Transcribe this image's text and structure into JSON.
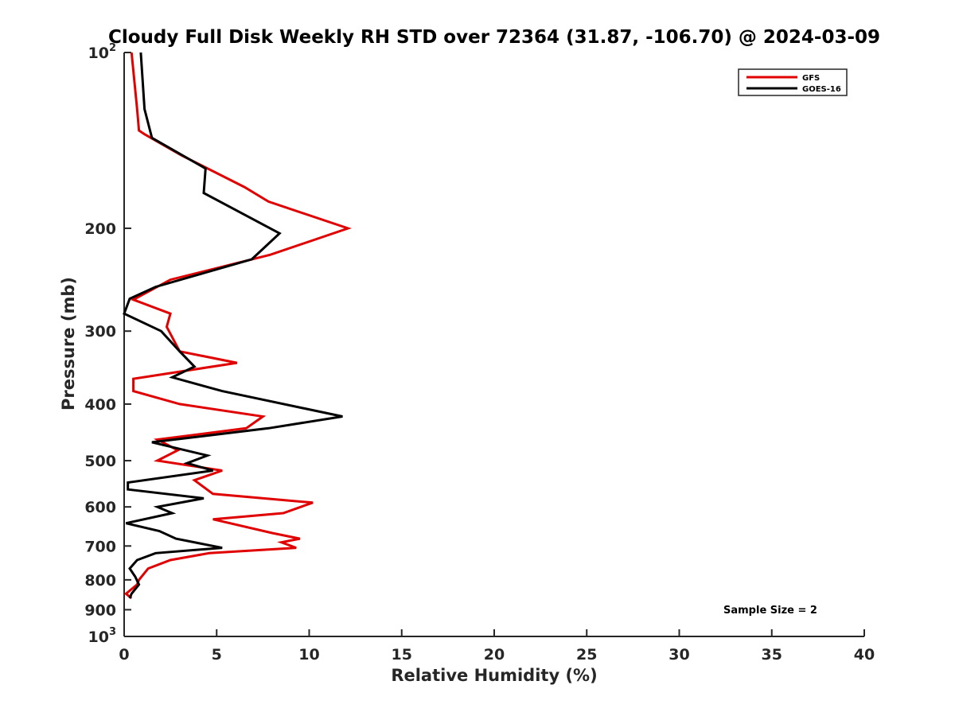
{
  "chart_data": {
    "type": "line",
    "title": "Cloudy Full Disk Weekly RH STD over 72364 (31.87, -106.70) @ 2024-03-09",
    "xlabel": "Relative Humidity (%)",
    "ylabel": "Pressure (mb)",
    "xlim": [
      0,
      40
    ],
    "ylim": [
      100,
      1000
    ],
    "y_scale": "log",
    "y_reversed": true,
    "x_ticks": [
      0,
      5,
      10,
      15,
      20,
      25,
      30,
      35,
      40
    ],
    "x_tick_labels": [
      "0",
      "5",
      "10",
      "15",
      "20",
      "25",
      "30",
      "35",
      "40"
    ],
    "y_ticks": [
      100,
      200,
      300,
      400,
      500,
      600,
      700,
      800,
      900,
      1000
    ],
    "y_tick_labels": [
      {
        "base": "10",
        "sup": "2"
      },
      {
        "base": "200",
        "sup": ""
      },
      {
        "base": "300",
        "sup": ""
      },
      {
        "base": "400",
        "sup": ""
      },
      {
        "base": "500",
        "sup": ""
      },
      {
        "base": "600",
        "sup": ""
      },
      {
        "base": "700",
        "sup": ""
      },
      {
        "base": "800",
        "sup": ""
      },
      {
        "base": "900",
        "sup": ""
      },
      {
        "base": "10",
        "sup": "3"
      }
    ],
    "grid": false,
    "legend_position": "top-right",
    "annotation": "Sample Size = 2",
    "series": [
      {
        "name": "GFS",
        "color": "#e00000",
        "points": [
          [
            0.4,
            100
          ],
          [
            0.7,
            125
          ],
          [
            0.7,
            125
          ],
          [
            0.8,
            136
          ],
          [
            1.1,
            138
          ],
          [
            3.1,
            150
          ],
          [
            6.5,
            170
          ],
          [
            7.8,
            180
          ],
          [
            12.1,
            200
          ],
          [
            7.9,
            222
          ],
          [
            2.5,
            245
          ],
          [
            0.5,
            265
          ],
          [
            2.5,
            280
          ],
          [
            2.3,
            295
          ],
          [
            3.0,
            325
          ],
          [
            6.1,
            340
          ],
          [
            0.5,
            362
          ],
          [
            0.5,
            380
          ],
          [
            3.0,
            400
          ],
          [
            7.5,
            420
          ],
          [
            6.6,
            440
          ],
          [
            1.8,
            460
          ],
          [
            2.9,
            480
          ],
          [
            1.8,
            500
          ],
          [
            5.3,
            520
          ],
          [
            3.8,
            540
          ],
          [
            4.8,
            570
          ],
          [
            10.2,
            590
          ],
          [
            8.6,
            615
          ],
          [
            4.8,
            630
          ],
          [
            8.0,
            665
          ],
          [
            9.5,
            680
          ],
          [
            8.5,
            690
          ],
          [
            9.3,
            705
          ],
          [
            4.6,
            720
          ],
          [
            2.5,
            740
          ],
          [
            1.3,
            765
          ],
          [
            0.8,
            800
          ],
          [
            0.7,
            815
          ],
          [
            0.1,
            845
          ],
          [
            0.4,
            860
          ]
        ]
      },
      {
        "name": "GOES-16",
        "color": "#000000",
        "points": [
          [
            0.9,
            100
          ],
          [
            1.1,
            125
          ],
          [
            1.5,
            140
          ],
          [
            4.4,
            158
          ],
          [
            4.3,
            174
          ],
          [
            8.4,
            204
          ],
          [
            6.9,
            226
          ],
          [
            1.7,
            252
          ],
          [
            0.3,
            264
          ],
          [
            0.0,
            280
          ],
          [
            2.0,
            300
          ],
          [
            3.0,
            325
          ],
          [
            3.8,
            345
          ],
          [
            2.6,
            360
          ],
          [
            5.3,
            380
          ],
          [
            11.8,
            420
          ],
          [
            7.8,
            440
          ],
          [
            1.5,
            465
          ],
          [
            4.5,
            490
          ],
          [
            3.4,
            505
          ],
          [
            4.8,
            520
          ],
          [
            0.2,
            545
          ],
          [
            0.2,
            560
          ],
          [
            4.3,
            580
          ],
          [
            1.8,
            600
          ],
          [
            2.6,
            615
          ],
          [
            0.1,
            640
          ],
          [
            1.9,
            660
          ],
          [
            2.8,
            680
          ],
          [
            5.3,
            705
          ],
          [
            1.7,
            720
          ],
          [
            0.7,
            740
          ],
          [
            0.3,
            765
          ],
          [
            0.6,
            790
          ],
          [
            0.8,
            815
          ],
          [
            0.4,
            845
          ],
          [
            0.3,
            860
          ]
        ]
      }
    ]
  }
}
